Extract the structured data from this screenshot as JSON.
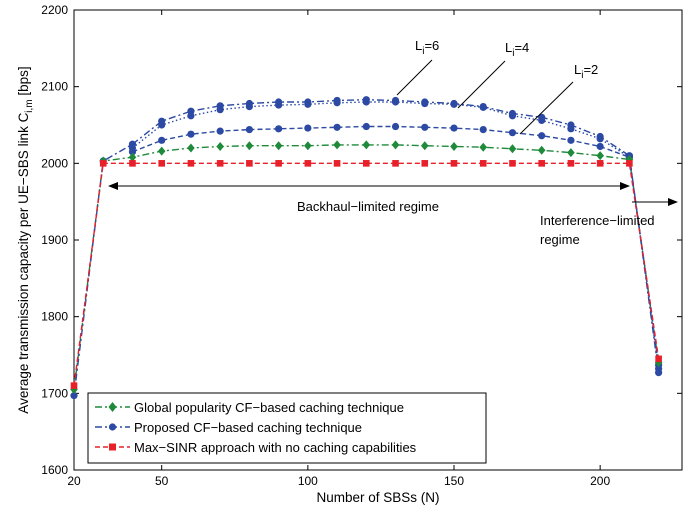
{
  "chart_data": {
    "type": "line",
    "title": "",
    "xlabel": "Number of SBSs (N)",
    "ylabel": "Average transmission capacity per UE−SBS link C",
    "ylabel_subscript": "i,m",
    "ylabel_unit": " [bps]",
    "xlim": [
      20,
      228
    ],
    "ylim": [
      1600,
      2200
    ],
    "xticks": [
      20,
      50,
      100,
      150,
      200
    ],
    "yticks": [
      1600,
      1700,
      1800,
      1900,
      2000,
      2100,
      2200
    ],
    "grid": false,
    "legend_position": "bottom-left",
    "series": [
      {
        "name": "Global popularity CF−based caching technique",
        "color": "#1e8a3a",
        "marker": "diamond",
        "dash": "dashdot",
        "x": [
          20,
          30,
          40,
          50,
          60,
          70,
          80,
          90,
          100,
          110,
          120,
          130,
          140,
          150,
          160,
          170,
          180,
          190,
          200,
          210,
          220
        ],
        "y": [
          1705,
          2003,
          2008,
          2016,
          2020,
          2022,
          2023,
          2023,
          2023,
          2024,
          2024,
          2024,
          2023,
          2022,
          2021,
          2019,
          2017,
          2014,
          2010,
          2005,
          1740
        ]
      },
      {
        "name": "Proposed CF−based caching technique",
        "color": "#2c4aa3",
        "marker": "circle",
        "dash": "dashdot",
        "x": [
          20,
          30,
          40,
          50,
          60,
          70,
          80,
          90,
          100,
          110,
          120,
          130,
          140,
          150,
          160,
          170,
          180,
          190,
          200,
          210,
          220
        ],
        "y": [
          1697,
          2003,
          2025,
          2055,
          2068,
          2075,
          2078,
          2080,
          2080,
          2082,
          2083,
          2082,
          2080,
          2078,
          2074,
          2065,
          2060,
          2050,
          2035,
          2010,
          1727
        ]
      },
      {
        "name": "",
        "color": "#2c4aa3",
        "marker": "circle",
        "dash": "dotted",
        "x": [
          40,
          50,
          60,
          70,
          80,
          90,
          100,
          110,
          120,
          130,
          140,
          150,
          160,
          170,
          180,
          190,
          200,
          210,
          220
        ],
        "y": [
          2020,
          2050,
          2062,
          2070,
          2074,
          2076,
          2077,
          2079,
          2080,
          2080,
          2078,
          2077,
          2073,
          2062,
          2056,
          2045,
          2032,
          2008,
          1732
        ]
      },
      {
        "name": "",
        "color": "#2c4aa3",
        "marker": "circle",
        "dash": "dashed",
        "x": [
          40,
          50,
          60,
          70,
          80,
          90,
          100,
          110,
          120,
          130,
          140,
          150,
          160,
          170,
          180,
          190,
          200,
          210,
          220
        ],
        "y": [
          2015,
          2030,
          2038,
          2042,
          2044,
          2045,
          2046,
          2047,
          2048,
          2048,
          2047,
          2046,
          2044,
          2040,
          2036,
          2030,
          2022,
          2008,
          1737
        ]
      },
      {
        "name": "Max−SINR approach with no caching capabilities",
        "color": "#e8202a",
        "marker": "square",
        "dash": "dashed",
        "x": [
          20,
          30,
          40,
          50,
          60,
          70,
          80,
          90,
          100,
          110,
          120,
          130,
          140,
          150,
          160,
          170,
          180,
          190,
          200,
          210,
          220
        ],
        "y": [
          1710,
          2000,
          2000,
          2000,
          2000,
          2000,
          2000,
          2000,
          2000,
          2000,
          2000,
          2000,
          2000,
          2000,
          2000,
          2000,
          2000,
          2000,
          2000,
          2000,
          1745
        ]
      }
    ],
    "annotations": [
      {
        "text": "L",
        "subscript": "i",
        "rest": "=6"
      },
      {
        "text": "L",
        "subscript": "i",
        "rest": "=4"
      },
      {
        "text": "L",
        "subscript": "i",
        "rest": "=2"
      },
      {
        "text": "Backhaul−limited regime"
      },
      {
        "text": "Interference−limited"
      },
      {
        "text": "regime"
      }
    ]
  }
}
